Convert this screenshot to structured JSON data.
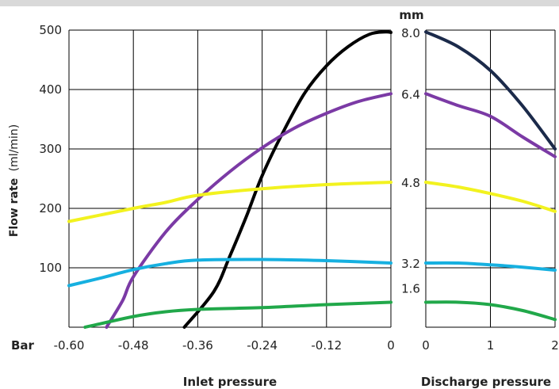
{
  "chart_data": {
    "type": "line",
    "ylabel_bold": "Flow rate",
    "ylabel_unit": "(ml/min)",
    "bar_label": "Bar",
    "mm_label": "mm",
    "ylim": [
      0,
      500
    ],
    "y_ticks": [
      "0",
      "100",
      "200",
      "300",
      "400",
      "500"
    ],
    "inlet": {
      "xlabel": "Inlet pressure",
      "xlim": [
        -0.6,
        0
      ],
      "x_ticks": [
        "-0.60",
        "-0.48",
        "-0.36",
        "-0.24",
        "-0.12",
        "0"
      ],
      "grid": true
    },
    "discharge": {
      "xlabel": "Discharge pressure",
      "xlim": [
        0,
        2
      ],
      "x_ticks": [
        "0",
        "1",
        "2"
      ],
      "grid": true
    },
    "series": [
      {
        "name": "8.0",
        "color": "#000000",
        "inlet": [
          [
            -0.385,
            0
          ],
          [
            -0.33,
            60
          ],
          [
            -0.3,
            120
          ],
          [
            -0.27,
            185
          ],
          [
            -0.24,
            255
          ],
          [
            -0.2,
            330
          ],
          [
            -0.16,
            395
          ],
          [
            -0.12,
            440
          ],
          [
            -0.08,
            472
          ],
          [
            -0.04,
            493
          ],
          [
            -0.01,
            497
          ],
          [
            0,
            496
          ]
        ]
      },
      {
        "name": "8.0",
        "color": "#1b2a4a",
        "discharge": [
          [
            0,
            497
          ],
          [
            0.5,
            472
          ],
          [
            1.0,
            432
          ],
          [
            1.5,
            372
          ],
          [
            2.0,
            300
          ]
        ]
      },
      {
        "name": "6.4",
        "color": "#7b3aa5",
        "inlet": [
          [
            -0.53,
            0
          ],
          [
            -0.5,
            45
          ],
          [
            -0.48,
            85
          ],
          [
            -0.42,
            160
          ],
          [
            -0.36,
            215
          ],
          [
            -0.3,
            262
          ],
          [
            -0.24,
            302
          ],
          [
            -0.18,
            335
          ],
          [
            -0.12,
            360
          ],
          [
            -0.06,
            380
          ],
          [
            0,
            393
          ]
        ],
        "discharge": [
          [
            0,
            393
          ],
          [
            0.5,
            373
          ],
          [
            1.0,
            355
          ],
          [
            1.5,
            320
          ],
          [
            2.0,
            287
          ]
        ]
      },
      {
        "name": "4.8",
        "color": "#f2f21f",
        "inlet": [
          [
            -0.6,
            178
          ],
          [
            -0.48,
            200
          ],
          [
            -0.42,
            210
          ],
          [
            -0.36,
            222
          ],
          [
            -0.24,
            233
          ],
          [
            -0.12,
            240
          ],
          [
            0,
            244
          ]
        ],
        "discharge": [
          [
            0,
            244
          ],
          [
            0.5,
            236
          ],
          [
            1.0,
            225
          ],
          [
            1.5,
            212
          ],
          [
            2.0,
            195
          ]
        ]
      },
      {
        "name": "3.2",
        "color": "#16b0e0",
        "inlet": [
          [
            -0.6,
            70
          ],
          [
            -0.54,
            83
          ],
          [
            -0.48,
            97
          ],
          [
            -0.42,
            107
          ],
          [
            -0.36,
            113
          ],
          [
            -0.24,
            114
          ],
          [
            -0.12,
            112
          ],
          [
            0,
            108
          ]
        ],
        "discharge": [
          [
            0,
            108
          ],
          [
            0.5,
            108
          ],
          [
            1.0,
            105
          ],
          [
            1.5,
            101
          ],
          [
            2.0,
            96
          ]
        ]
      },
      {
        "name": "1.6",
        "color": "#21a84a",
        "inlet": [
          [
            -0.57,
            0
          ],
          [
            -0.48,
            18
          ],
          [
            -0.42,
            26
          ],
          [
            -0.36,
            30
          ],
          [
            -0.24,
            33
          ],
          [
            -0.12,
            38
          ],
          [
            0,
            42
          ]
        ],
        "discharge": [
          [
            0,
            42
          ],
          [
            0.5,
            42
          ],
          [
            1.0,
            38
          ],
          [
            1.5,
            28
          ],
          [
            2.0,
            13
          ]
        ]
      }
    ],
    "mm_values": [
      "8.0",
      "6.4",
      "4.8",
      "3.2",
      "1.6"
    ]
  }
}
